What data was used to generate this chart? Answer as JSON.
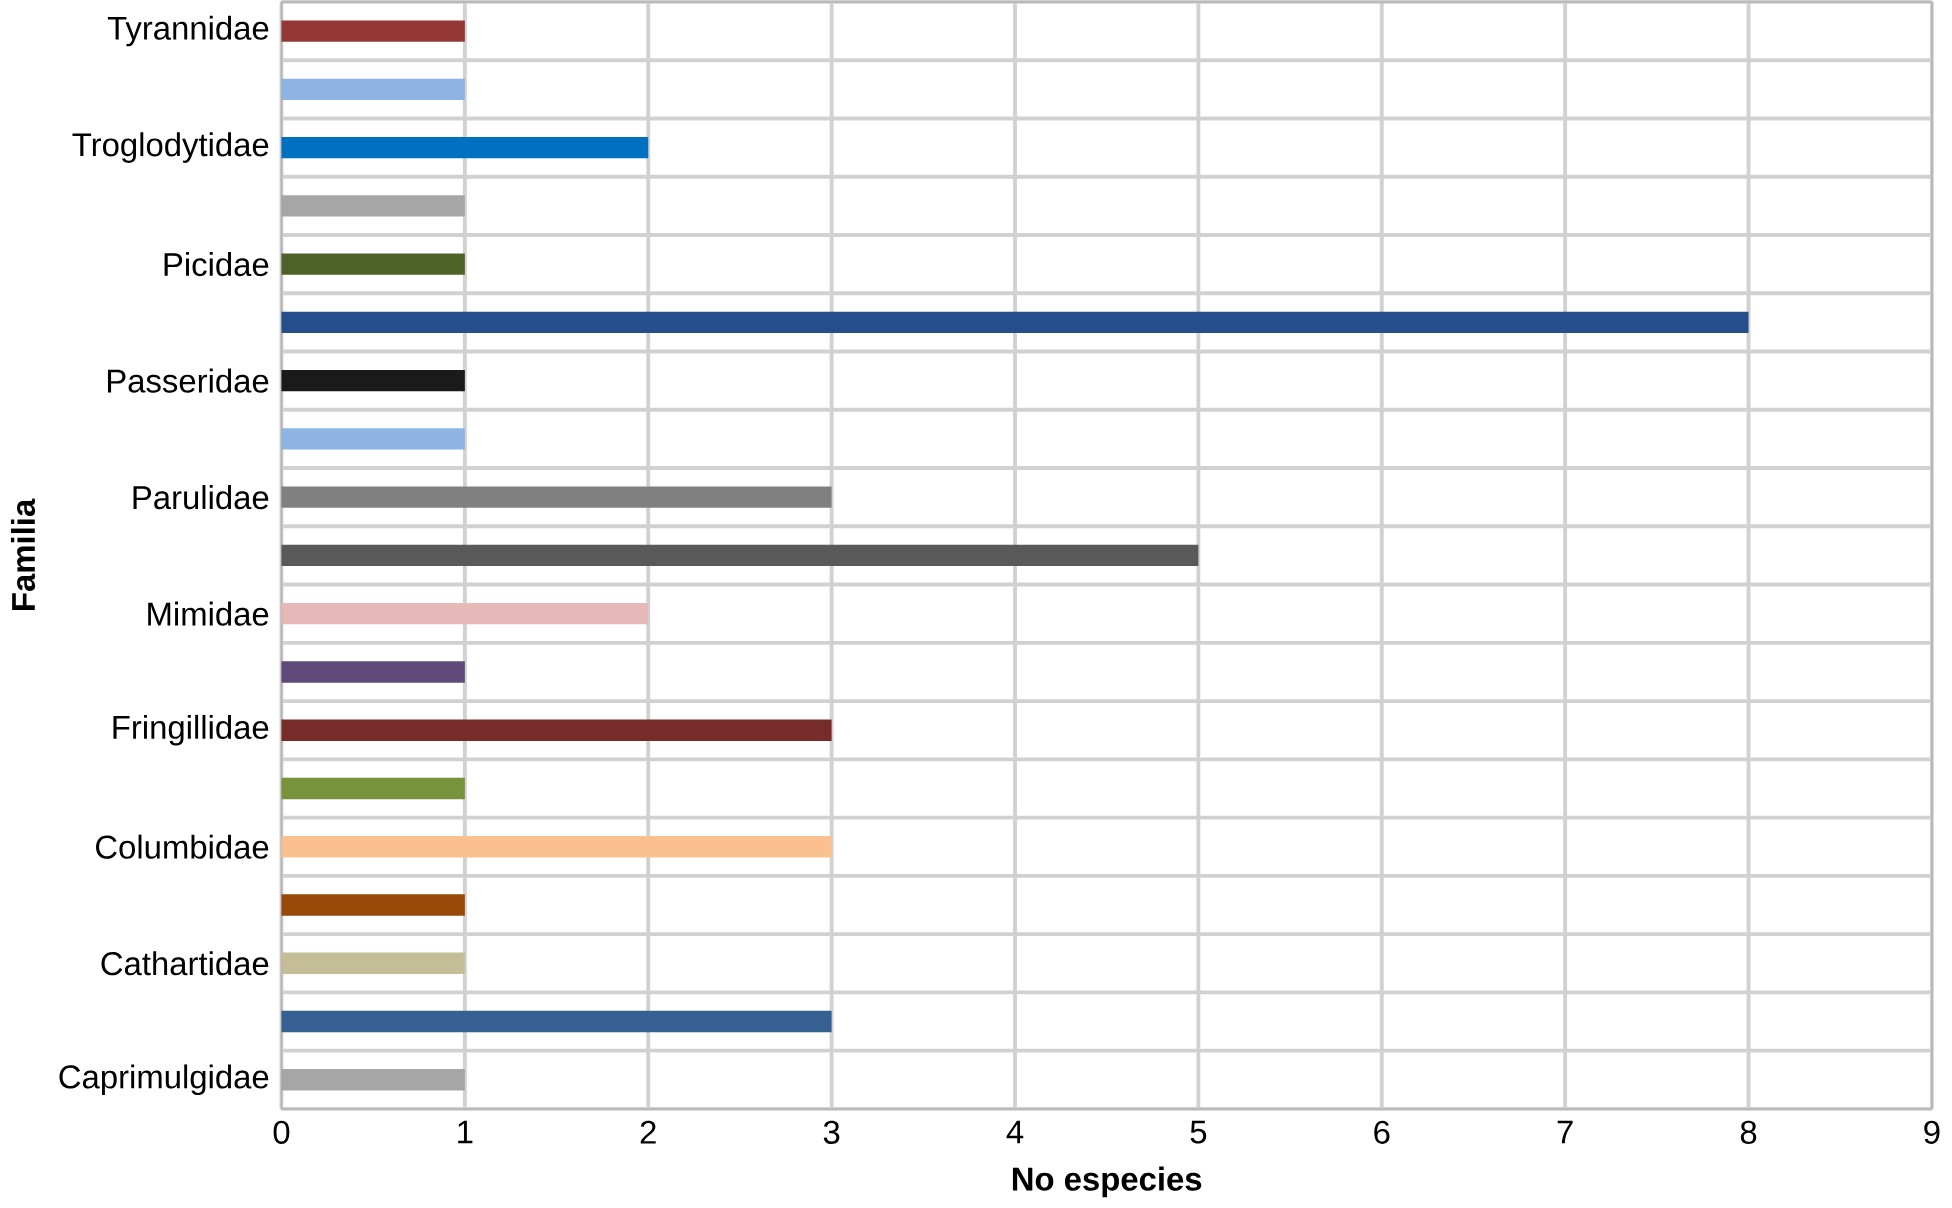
{
  "chart_data": {
    "type": "bar",
    "orientation": "horizontal",
    "xlabel": "No especies",
    "ylabel": "Familia",
    "categories": [
      "Tyrannidae",
      null,
      "Troglodytidae",
      null,
      "Picidae",
      null,
      "Passeridae",
      null,
      "Parulidae",
      null,
      "Mimidae",
      null,
      "Fringillidae",
      null,
      "Columbidae",
      null,
      "Cathartidae",
      null,
      "Caprimulgidae"
    ],
    "values": [
      1,
      1,
      2,
      1,
      1,
      8,
      1,
      1,
      3,
      5,
      2,
      1,
      3,
      1,
      3,
      1,
      1,
      3,
      1
    ],
    "colors": [
      "#953735",
      "#8db4e2",
      "#0070c0",
      "#a6a6a6",
      "#4f6228",
      "#254e8c",
      "#1a1a1a",
      "#8db4e2",
      "#808080",
      "#595959",
      "#e6b9b8",
      "#604a7b",
      "#772c2a",
      "#77933c",
      "#fac090",
      "#984807",
      "#c4bd97",
      "#366092",
      "#a6a6a6"
    ],
    "xlim": [
      0,
      9
    ],
    "xticks": [
      0,
      1,
      2,
      3,
      4,
      5,
      6,
      7,
      8,
      9
    ],
    "grid": true
  }
}
